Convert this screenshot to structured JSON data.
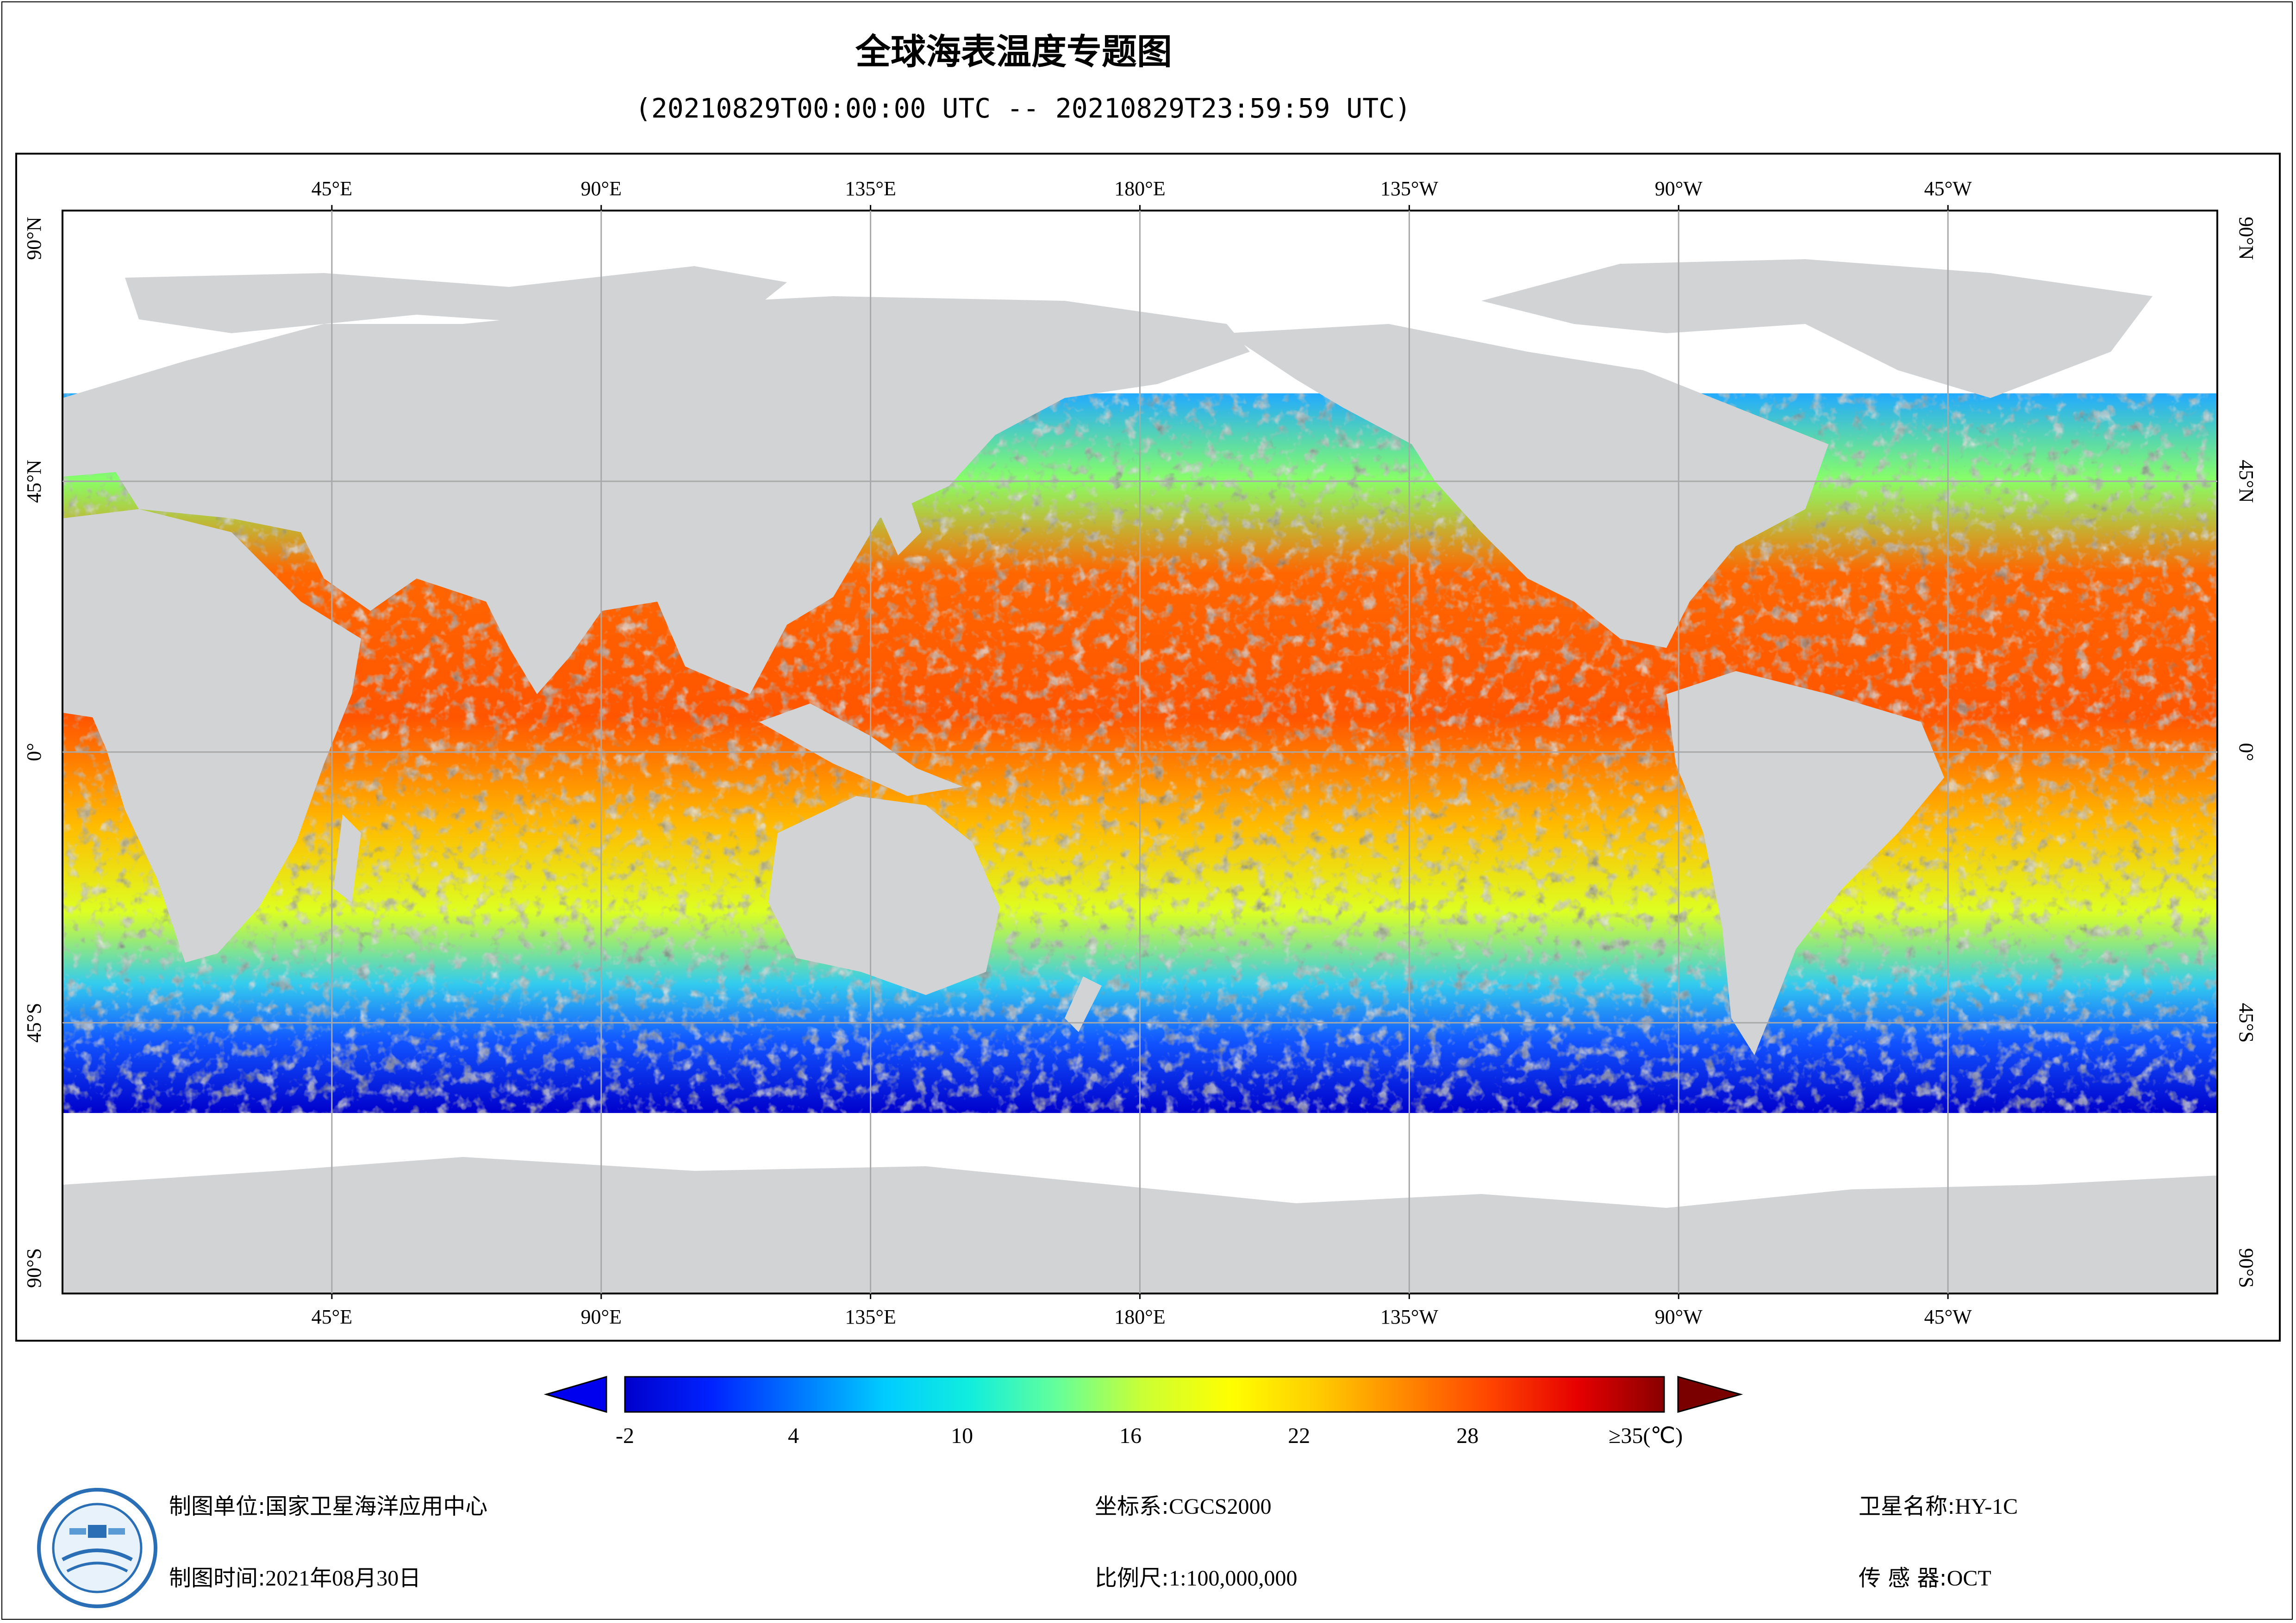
{
  "header": {
    "title": "全球海表温度专题图",
    "subtitle": "(20210829T00:00:00 UTC -- 20210829T23:59:59 UTC)"
  },
  "map": {
    "lon_ticks": [
      "45°E",
      "90°E",
      "135°E",
      "180°E",
      "135°W",
      "90°W",
      "45°W"
    ],
    "lat_ticks": [
      "90°N",
      "45°N",
      "0°",
      "45°S",
      "90°S"
    ],
    "colors": {
      "land": "#d2d3d5",
      "no_data": "#ffffff",
      "grid": "#a8a8a8"
    }
  },
  "colorbar": {
    "tick_labels": [
      "-2",
      "4",
      "10",
      "16",
      "22",
      "28",
      "≥35(℃)"
    ],
    "min": -2,
    "max": 35,
    "unit": "℃",
    "stops": [
      "#0000cc",
      "#0022ff",
      "#0077ff",
      "#00ccff",
      "#11eedd",
      "#66ff99",
      "#ccff33",
      "#ffff00",
      "#ffcc00",
      "#ff8800",
      "#ff4400",
      "#e60000",
      "#880000"
    ],
    "arrow_colors": {
      "low": "#0000ee",
      "high": "#7a0000"
    }
  },
  "footer": {
    "unit_label": "制图单位:",
    "unit_value": "国家卫星海洋应用中心",
    "time_label": "制图时间:",
    "time_value": "2021年08月30日",
    "crs_label": "坐标系:",
    "crs_value": "CGCS2000",
    "scale_label": "比例尺:",
    "scale_value": "1:100,000,000",
    "satellite_label": "卫星名称:",
    "satellite_value": "HY-1C",
    "sensor_label": "传 感 器:",
    "sensor_value": "OCT"
  }
}
